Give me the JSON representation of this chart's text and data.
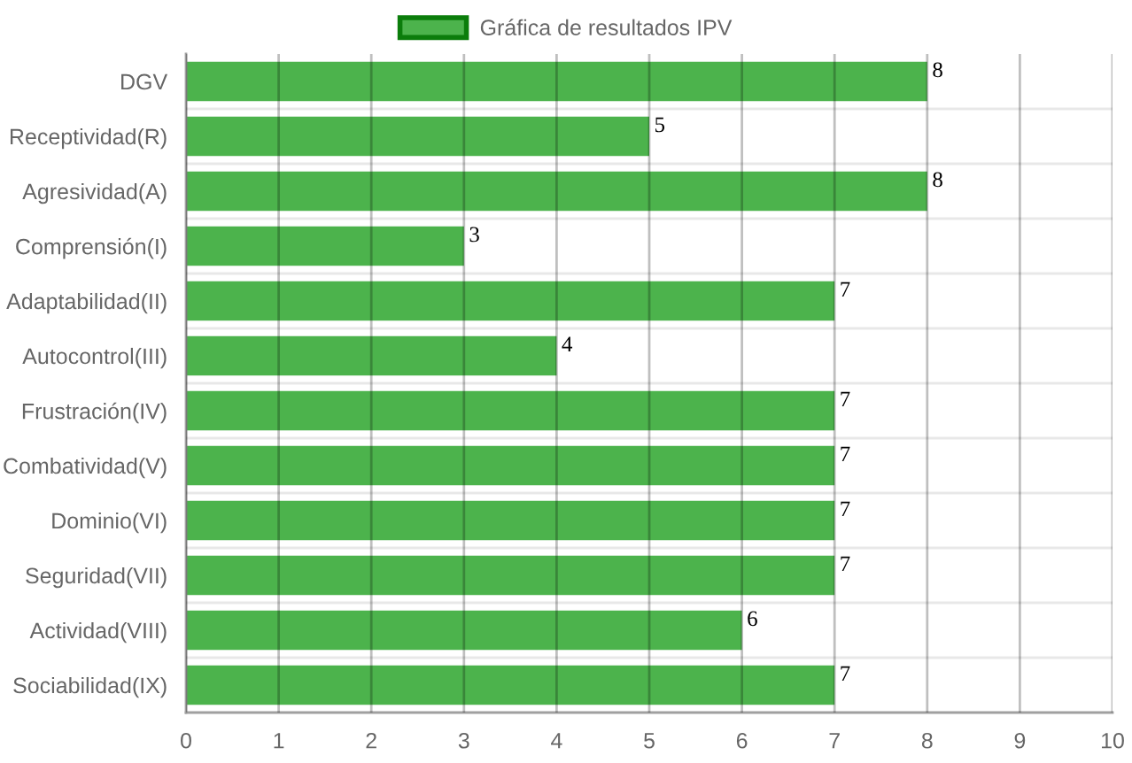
{
  "chart_data": {
    "type": "bar",
    "orientation": "horizontal",
    "categories": [
      "DGV",
      "Receptividad(R)",
      "Agresividad(A)",
      "Comprensión(I)",
      "Adaptabilidad(II)",
      "Autocontrol(III)",
      "Frustración(IV)",
      "Combatividad(V)",
      "Dominio(VI)",
      "Seguridad(VII)",
      "Actividad(VIII)",
      "Sociabilidad(IX)"
    ],
    "series": [
      {
        "name": "Gráfica de resultados IPV",
        "color": "#4cb34c",
        "values": [
          8,
          5,
          8,
          3,
          7,
          4,
          7,
          7,
          7,
          7,
          6,
          7
        ]
      }
    ],
    "xlim": [
      0,
      10
    ],
    "xticks": [
      0,
      1,
      2,
      3,
      4,
      5,
      6,
      7,
      8,
      9,
      10
    ],
    "grid": true,
    "legend": "top",
    "data_labels": true
  }
}
